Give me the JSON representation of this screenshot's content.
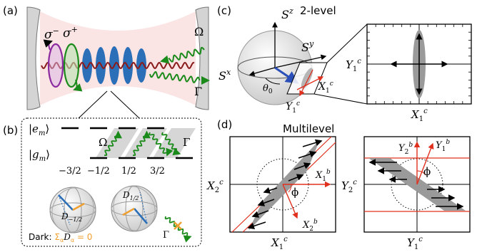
{
  "panel_labels": {
    "a": "(a)",
    "b": "(b)",
    "c": "(c)",
    "d": "(d)"
  },
  "panel_a": {
    "sigma_minus": "σ",
    "sigma_minus_sup": "−",
    "sigma_plus": "σ",
    "sigma_plus_sup": "+",
    "omega": "Ω",
    "gamma": "Γ"
  },
  "panel_b": {
    "excited": "|e",
    "excited_sub": "m",
    "ground": "|g",
    "ground_sub": "m",
    "ket_close": "⟩",
    "omega": "Ω",
    "gamma": "Γ",
    "m_values": [
      "−3/2",
      "−1/2",
      "1/2",
      "3/2"
    ],
    "d_minus": "D",
    "d_minus_sub": "−1/2",
    "d_plus": "D",
    "d_plus_sub": "1/2",
    "dark_prefix": "Dark: ",
    "dark_formula": "Σ",
    "dark_formula_sub": "α",
    "dark_formula_rest": "D",
    "dark_formula_rest_sub": "α",
    "dark_formula_end": " = 0",
    "gamma_small": "Γ"
  },
  "panel_c": {
    "title": "2-level",
    "sz": "S",
    "sz_sup": "z",
    "sy": "S",
    "sy_sup": "y",
    "sx": "S",
    "sx_sup": "x",
    "theta": "θ",
    "theta_sub": "0",
    "x1c": "X",
    "x1c_sub": "1",
    "x1c_sup": "c",
    "y1c": "Y",
    "y1c_sub": "1",
    "y1c_sup": "c",
    "box_xlabel": "X",
    "box_xlabel_sub": "1",
    "box_xlabel_sup": "c",
    "box_ylabel": "Y",
    "box_ylabel_sub": "1",
    "box_ylabel_sup": "c"
  },
  "panel_d": {
    "title": "Multilevel",
    "left_xlabel": "X",
    "left_xlabel_sub": "1",
    "left_xlabel_sup": "c",
    "left_ylabel": "X",
    "left_ylabel_sub": "2",
    "left_ylabel_sup": "c",
    "left_x1b": "X",
    "left_x1b_sub": "1",
    "left_x1b_sup": "b",
    "left_x2b": "X",
    "left_x2b_sub": "2",
    "left_x2b_sup": "b",
    "left_phi": "ϕ",
    "right_xlabel": "Y",
    "right_xlabel_sub": "1",
    "right_xlabel_sup": "c",
    "right_ylabel": "Y",
    "right_ylabel_sub": "2",
    "right_ylabel_sup": "c",
    "right_y1b": "Y",
    "right_y1b_sub": "1",
    "right_y1b_sup": "b",
    "right_y2b": "Y",
    "right_y2b_sub": "2",
    "right_y2b_sup": "b",
    "right_phi": "ϕ"
  },
  "colors": {
    "green": "#1a8a1a",
    "purple": "#8b2a9e",
    "red": "#e0301e",
    "blue": "#2a6fb8",
    "orange": "#f0a030",
    "cavity_pink": "#fbe4e4",
    "gray": "#9a9a9a",
    "wave_red": "#8b1a1a"
  }
}
